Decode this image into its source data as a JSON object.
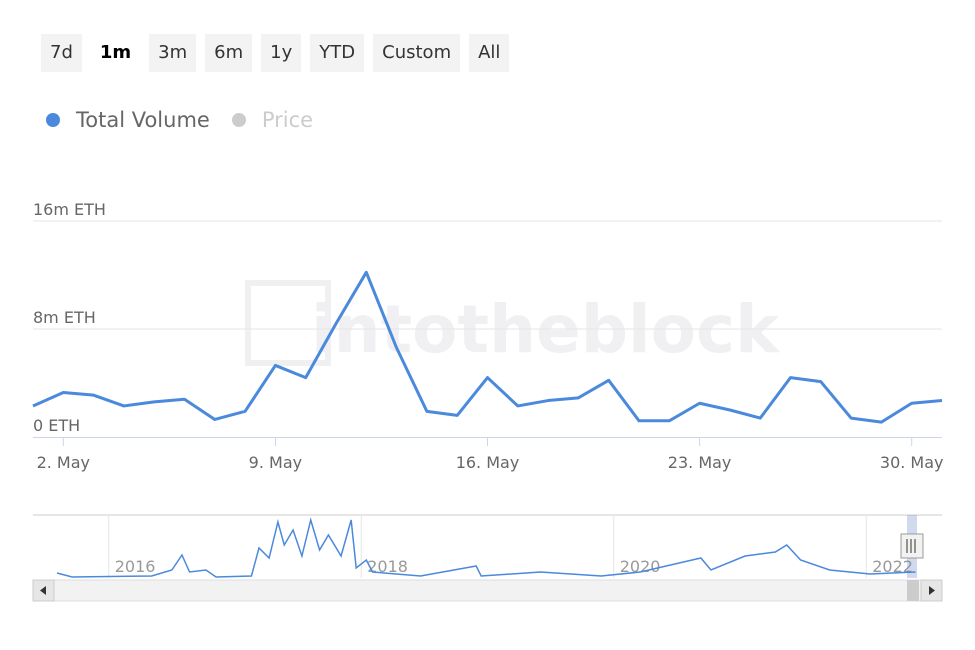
{
  "range_buttons": [
    "7d",
    "1m",
    "3m",
    "6m",
    "1y",
    "YTD",
    "Custom",
    "All"
  ],
  "selected_button": "1m",
  "chart_data": {
    "type": "line",
    "watermark": "intotheblock",
    "x": [
      1,
      2,
      3,
      4,
      5,
      6,
      7,
      8,
      9,
      10,
      11,
      12,
      13,
      14,
      15,
      16,
      17,
      18,
      19,
      20,
      21,
      22,
      23,
      24,
      25,
      26,
      27,
      28,
      29,
      30,
      31
    ],
    "series": [
      {
        "name": "Total Volume",
        "color": "#4a89dc",
        "values": [
          2.3,
          3.3,
          3.1,
          2.3,
          2.6,
          2.8,
          1.3,
          1.9,
          5.3,
          4.4,
          8.4,
          12.2,
          6.6,
          1.9,
          1.6,
          4.4,
          2.3,
          2.7,
          2.9,
          4.2,
          1.2,
          1.2,
          2.5,
          2.0,
          1.4,
          4.4,
          4.1,
          1.4,
          1.1,
          2.5,
          2.7
        ]
      }
    ],
    "hidden_series": [
      {
        "name": "Price",
        "color": "#cccccc"
      }
    ],
    "xlim": [
      1,
      31
    ],
    "xticks": [
      {
        "value": 2,
        "label": "2. May"
      },
      {
        "value": 9,
        "label": "9. May"
      },
      {
        "value": 16,
        "label": "16. May"
      },
      {
        "value": 23,
        "label": "23. May"
      },
      {
        "value": 30,
        "label": "30. May"
      }
    ],
    "ylim": [
      0,
      16
    ],
    "yticks": [
      {
        "value": 0,
        "label": "0 ETH"
      },
      {
        "value": 8,
        "label": "8m ETH"
      },
      {
        "value": 16,
        "label": "16m ETH"
      }
    ],
    "grid": true,
    "navigator": {
      "x": [
        2015.59,
        2015.71,
        2016.34,
        2016.5,
        2016.58,
        2016.64,
        2016.77,
        2016.85,
        2017.13,
        2017.19,
        2017.27,
        2017.34,
        2017.39,
        2017.46,
        2017.53,
        2017.6,
        2017.67,
        2017.74,
        2017.84,
        2017.92,
        2017.96,
        2018.04,
        2018.09,
        2018.47,
        2018.91,
        2018.95,
        2019.42,
        2019.9,
        2020.21,
        2020.69,
        2020.77,
        2021.04,
        2021.28,
        2021.37,
        2021.48,
        2021.71,
        2022.03,
        2022.39
      ],
      "values": [
        0.5,
        0.1,
        0.2,
        0.8,
        2.3,
        0.6,
        0.8,
        0.1,
        0.2,
        3.0,
        2.0,
        5.6,
        3.3,
        4.8,
        2.2,
        5.8,
        2.8,
        4.3,
        2.2,
        5.8,
        1.0,
        1.8,
        0.6,
        0.2,
        1.2,
        0.2,
        0.6,
        0.2,
        0.6,
        2.0,
        0.8,
        2.2,
        2.6,
        3.3,
        1.8,
        0.8,
        0.4,
        0.6
      ],
      "xlim": [
        2015.4,
        2022.6
      ],
      "ylim": [
        0,
        6
      ],
      "xticks": [
        2016,
        2018,
        2020,
        2022
      ]
    }
  }
}
